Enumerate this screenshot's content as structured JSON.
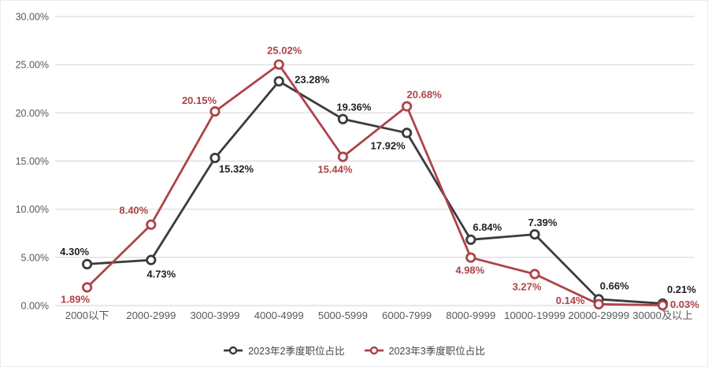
{
  "chart_data": {
    "type": "line",
    "title": "",
    "xlabel": "",
    "ylabel": "",
    "categories": [
      "2000以下",
      "2000-2999",
      "3000-3999",
      "4000-4999",
      "5000-5999",
      "6000-7999",
      "8000-9999",
      "10000-19999",
      "20000-29999",
      "30000及以上"
    ],
    "series": [
      {
        "name": "2023年2季度职位占比",
        "color": "#3B3B3B",
        "values": [
          4.3,
          4.73,
          15.32,
          23.28,
          19.36,
          17.92,
          6.84,
          7.39,
          0.66,
          0.21
        ],
        "labels": [
          "4.30%",
          "4.73%",
          "15.32%",
          "23.28%",
          "19.36%",
          "17.92%",
          "6.84%",
          "7.39%",
          "0.66%",
          "0.21%"
        ],
        "label_offsets": [
          [
            -16,
            -16
          ],
          [
            13,
            18
          ],
          [
            27,
            14
          ],
          [
            42,
            -2
          ],
          [
            14,
            -15
          ],
          [
            -24,
            16
          ],
          [
            21,
            -16
          ],
          [
            10,
            -15
          ],
          [
            20,
            -17
          ],
          [
            24,
            -18
          ]
        ]
      },
      {
        "name": "2023年3季度职位占比",
        "color": "#AE4347",
        "values": [
          1.89,
          8.4,
          20.15,
          25.02,
          15.44,
          20.68,
          4.98,
          3.27,
          0.14,
          0.03
        ],
        "labels": [
          "1.89%",
          "8.40%",
          "20.15%",
          "25.02%",
          "15.44%",
          "20.68%",
          "4.98%",
          "3.27%",
          "0.14%",
          "0.03%"
        ],
        "label_offsets": [
          [
            -15,
            15
          ],
          [
            -22,
            -18
          ],
          [
            -20,
            -14
          ],
          [
            7,
            -18
          ],
          [
            -10,
            16
          ],
          [
            22,
            -15
          ],
          [
            -1,
            16
          ],
          [
            -10,
            16
          ],
          [
            -36,
            -5
          ],
          [
            28,
            -1
          ]
        ]
      }
    ],
    "ylim": [
      0,
      30
    ],
    "ytick_step": 5,
    "ytick_labels": [
      "0.00%",
      "5.00%",
      "10.00%",
      "15.00%",
      "20.00%",
      "25.00%",
      "30.00%"
    ],
    "grid": true,
    "legend_position": "bottom"
  },
  "colors": {
    "background": "#FFFFFF",
    "grid": "#D9D9D9",
    "axis_text": "#595959",
    "black_label_text": "#1F1F1F",
    "legend_text": "#444444",
    "border": "#ECECEC"
  }
}
